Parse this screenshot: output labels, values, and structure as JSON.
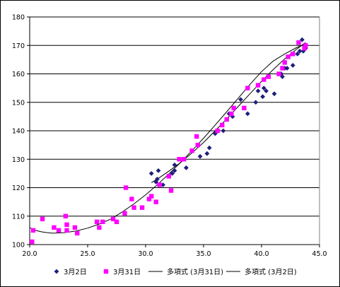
{
  "chart_data": {
    "type": "scatter",
    "title": "",
    "xlabel": "",
    "ylabel": "",
    "xlim": [
      20.0,
      45.0
    ],
    "ylim": [
      100,
      180
    ],
    "x_ticks": [
      "20.0",
      "25.0",
      "30.0",
      "35.0",
      "40.0",
      "45.0"
    ],
    "y_ticks": [
      "100",
      "110",
      "120",
      "130",
      "140",
      "150",
      "160",
      "170",
      "180"
    ],
    "grid": "horizontal",
    "legend_position": "bottom",
    "series": [
      {
        "name": "3月2日",
        "marker": "diamond",
        "color": "#1f1f7a",
        "points": [
          [
            30.5,
            125
          ],
          [
            30.9,
            122
          ],
          [
            31.1,
            126
          ],
          [
            31.0,
            123
          ],
          [
            31.5,
            121
          ],
          [
            32.0,
            124
          ],
          [
            32.3,
            125
          ],
          [
            32.5,
            128
          ],
          [
            32.5,
            126
          ],
          [
            33.5,
            127
          ],
          [
            34.7,
            131
          ],
          [
            35.3,
            132
          ],
          [
            35.5,
            134
          ],
          [
            36.0,
            139
          ],
          [
            36.2,
            140
          ],
          [
            36.7,
            140
          ],
          [
            37.2,
            146
          ],
          [
            37.5,
            145
          ],
          [
            38.2,
            151
          ],
          [
            38.8,
            146
          ],
          [
            39.5,
            150
          ],
          [
            39.7,
            154
          ],
          [
            40.1,
            152
          ],
          [
            40.2,
            155
          ],
          [
            40.4,
            154
          ],
          [
            41.1,
            153
          ],
          [
            41.7,
            160
          ],
          [
            41.8,
            159
          ],
          [
            42.0,
            162
          ],
          [
            42.2,
            162
          ],
          [
            42.7,
            163
          ],
          [
            43.1,
            167
          ],
          [
            43.3,
            168
          ],
          [
            43.5,
            172
          ],
          [
            43.6,
            168
          ],
          [
            43.8,
            169
          ]
        ]
      },
      {
        "name": "3月31日",
        "marker": "square",
        "color": "#ff00ff",
        "points": [
          [
            20.2,
            101
          ],
          [
            20.3,
            105
          ],
          [
            21.1,
            109
          ],
          [
            22.1,
            106
          ],
          [
            22.5,
            105
          ],
          [
            23.1,
            110
          ],
          [
            23.2,
            107
          ],
          [
            23.2,
            105
          ],
          [
            23.9,
            106
          ],
          [
            24.1,
            104
          ],
          [
            25.8,
            108
          ],
          [
            26.0,
            106
          ],
          [
            26.3,
            108
          ],
          [
            27.2,
            109
          ],
          [
            27.5,
            108
          ],
          [
            28.2,
            111
          ],
          [
            28.3,
            120
          ],
          [
            28.8,
            116
          ],
          [
            29.0,
            113
          ],
          [
            29.7,
            113
          ],
          [
            30.3,
            116
          ],
          [
            30.5,
            117
          ],
          [
            30.9,
            115
          ],
          [
            31.2,
            121
          ],
          [
            32.0,
            124
          ],
          [
            32.2,
            119
          ],
          [
            32.9,
            130
          ],
          [
            33.3,
            130
          ],
          [
            34.0,
            133
          ],
          [
            34.4,
            138
          ],
          [
            34.5,
            135
          ],
          [
            36.2,
            140
          ],
          [
            36.6,
            142
          ],
          [
            37.0,
            144
          ],
          [
            37.4,
            146
          ],
          [
            37.6,
            148
          ],
          [
            38.5,
            148
          ],
          [
            38.8,
            155
          ],
          [
            39.7,
            156
          ],
          [
            40.2,
            158
          ],
          [
            40.6,
            159
          ],
          [
            41.5,
            160
          ],
          [
            41.8,
            162
          ],
          [
            42.0,
            164
          ],
          [
            42.3,
            166
          ],
          [
            42.7,
            167
          ],
          [
            43.2,
            171
          ],
          [
            43.8,
            170
          ],
          [
            43.7,
            169
          ]
        ]
      }
    ],
    "trendlines": [
      {
        "name": "多項式 (3月31日)",
        "type": "polynomial",
        "color": "#000000",
        "curve": [
          [
            20.0,
            106.0
          ],
          [
            20.5,
            105.0
          ],
          [
            21.0,
            104.5
          ],
          [
            21.5,
            104.2
          ],
          [
            22.0,
            104.0
          ],
          [
            23.0,
            104.2
          ],
          [
            24.0,
            104.8
          ],
          [
            25.0,
            105.8
          ],
          [
            26.0,
            107.2
          ],
          [
            27.0,
            109.0
          ],
          [
            28.0,
            111.5
          ],
          [
            29.0,
            114.3
          ],
          [
            30.0,
            117.5
          ],
          [
            31.0,
            121.0
          ],
          [
            32.0,
            124.8
          ],
          [
            33.0,
            128.8
          ],
          [
            34.0,
            133.0
          ],
          [
            35.0,
            137.4
          ],
          [
            36.0,
            142.0
          ],
          [
            37.0,
            146.7
          ],
          [
            38.0,
            151.5
          ],
          [
            39.0,
            156.3
          ],
          [
            40.0,
            160.8
          ],
          [
            41.0,
            164.5
          ],
          [
            42.0,
            167.0
          ],
          [
            43.0,
            169.2
          ],
          [
            43.8,
            170.5
          ]
        ]
      },
      {
        "name": "多項式 (3月2日)",
        "type": "polynomial",
        "color": "#000000",
        "curve": [
          [
            30.5,
            121.8
          ],
          [
            31.0,
            123.0
          ],
          [
            32.0,
            125.8
          ],
          [
            33.0,
            128.8
          ],
          [
            34.0,
            132.2
          ],
          [
            35.0,
            135.9
          ],
          [
            36.0,
            140.0
          ],
          [
            37.0,
            144.2
          ],
          [
            38.0,
            148.6
          ],
          [
            39.0,
            153.0
          ],
          [
            40.0,
            157.4
          ],
          [
            41.0,
            161.5
          ],
          [
            42.0,
            165.3
          ],
          [
            43.0,
            168.6
          ],
          [
            43.8,
            171.0
          ]
        ]
      }
    ],
    "legend": [
      {
        "label": "3月2日",
        "kind": "diamond",
        "color": "#1f1f7a"
      },
      {
        "label": "3月31日",
        "kind": "square",
        "color": "#ff00ff"
      },
      {
        "label": "多項式 (3月31日)",
        "kind": "line",
        "color": "#000000"
      },
      {
        "label": "多項式 (3月2日)",
        "kind": "line",
        "color": "#000000"
      }
    ]
  }
}
